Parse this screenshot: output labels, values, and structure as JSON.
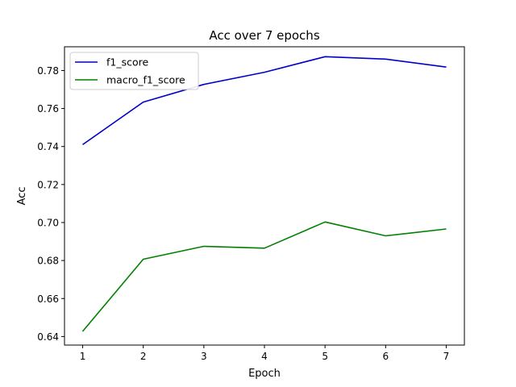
{
  "chart_data": {
    "type": "line",
    "title": "Acc over 7 epochs",
    "xlabel": "Epoch",
    "ylabel": "Acc",
    "x": [
      1,
      2,
      3,
      4,
      5,
      6,
      7
    ],
    "xticks": [
      "1",
      "2",
      "3",
      "4",
      "5",
      "6",
      "7"
    ],
    "yticks": [
      "0.64",
      "0.66",
      "0.68",
      "0.70",
      "0.72",
      "0.74",
      "0.76",
      "0.78"
    ],
    "xlim": [
      0.7,
      7.3
    ],
    "ylim": [
      0.6355,
      0.7925
    ],
    "grid": false,
    "legend_position": "top-left",
    "series": [
      {
        "name": "f1_score",
        "color": "#0000cc",
        "values": [
          0.741,
          0.7634,
          0.7727,
          0.7791,
          0.7873,
          0.786,
          0.7818
        ]
      },
      {
        "name": "macro_f1_score",
        "color": "#008000",
        "values": [
          0.6427,
          0.6807,
          0.6875,
          0.6865,
          0.7003,
          0.693,
          0.6966
        ]
      }
    ]
  }
}
